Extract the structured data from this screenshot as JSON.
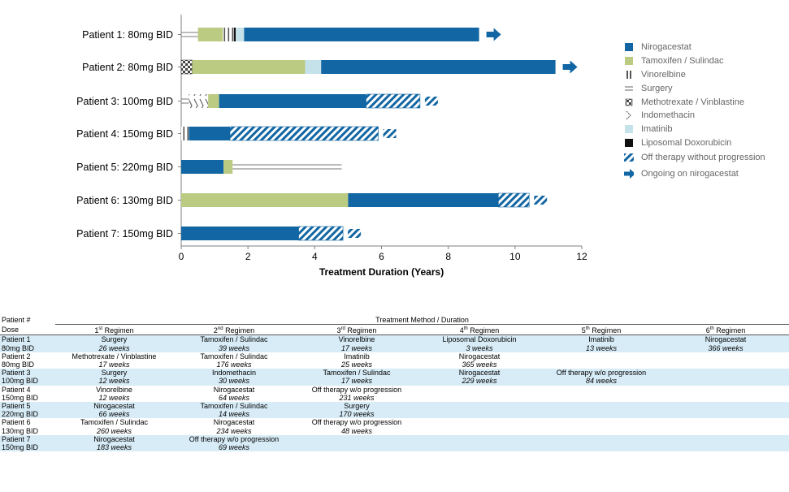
{
  "chart_data": {
    "type": "bar",
    "orientation": "horizontal-stacked-timeline",
    "xlabel": "Treatment Duration (Years)",
    "xlim": [
      0,
      12
    ],
    "xticks": [
      0,
      2,
      4,
      6,
      8,
      10,
      12
    ],
    "categories": [
      "Patient 1: 80mg BID",
      "Patient 2: 80mg BID",
      "Patient 3: 100mg BID",
      "Patient 4: 150mg BID",
      "Patient 5: 220mg BID",
      "Patient 6: 130mg BID",
      "Patient 7: 150mg BID"
    ],
    "patients": [
      {
        "label": "Patient 1: 80mg BID",
        "ongoing": true,
        "segments": [
          {
            "treatment": "Surgery",
            "weeks": 26
          },
          {
            "treatment": "Tamoxifen / Sulindac",
            "weeks": 39
          },
          {
            "treatment": "Vinorelbine",
            "weeks": 17
          },
          {
            "treatment": "Liposomal Doxorubicin",
            "weeks": 3
          },
          {
            "treatment": "Imatinib",
            "weeks": 13
          },
          {
            "treatment": "Nirogacestat",
            "weeks": 366
          }
        ]
      },
      {
        "label": "Patient 2: 80mg BID",
        "ongoing": true,
        "segments": [
          {
            "treatment": "Methotrexate / Vinblastine",
            "weeks": 17
          },
          {
            "treatment": "Tamoxifen / Sulindac",
            "weeks": 176
          },
          {
            "treatment": "Imatinib",
            "weeks": 25
          },
          {
            "treatment": "Nirogacestat",
            "weeks": 365
          }
        ]
      },
      {
        "label": "Patient 3: 100mg BID",
        "ongoing": false,
        "segments": [
          {
            "treatment": "Surgery",
            "weeks": 12
          },
          {
            "treatment": "Indomethacin",
            "weeks": 30
          },
          {
            "treatment": "Tamoxifen / Sulindac",
            "weeks": 17
          },
          {
            "treatment": "Nirogacestat",
            "weeks": 229
          },
          {
            "treatment": "Off therapy without progression",
            "weeks": 84
          }
        ]
      },
      {
        "label": "Patient 4: 150mg BID",
        "ongoing": false,
        "segments": [
          {
            "treatment": "Vinorelbine",
            "weeks": 12
          },
          {
            "treatment": "Nirogacestat",
            "weeks": 64
          },
          {
            "treatment": "Off therapy without progression",
            "weeks": 231
          }
        ]
      },
      {
        "label": "Patient 5: 220mg BID",
        "ongoing": false,
        "segments": [
          {
            "treatment": "Nirogacestat",
            "weeks": 66
          },
          {
            "treatment": "Tamoxifen / Sulindac",
            "weeks": 14
          },
          {
            "treatment": "Surgery",
            "weeks": 170
          }
        ]
      },
      {
        "label": "Patient 6: 130mg BID",
        "ongoing": false,
        "segments": [
          {
            "treatment": "Tamoxifen / Sulindac",
            "weeks": 260
          },
          {
            "treatment": "Nirogacestat",
            "weeks": 234
          },
          {
            "treatment": "Off therapy without progression",
            "weeks": 48
          }
        ]
      },
      {
        "label": "Patient 7: 150mg BID",
        "ongoing": false,
        "segments": [
          {
            "treatment": "Nirogacestat",
            "weeks": 183
          },
          {
            "treatment": "Off therapy without progression",
            "weeks": 69
          }
        ]
      }
    ],
    "legend_position": "right",
    "grid": false
  },
  "colors": {
    "Nirogacestat": "#1166a3",
    "Tamoxifen / Sulindac": "#bccb82",
    "Imatinib": "#c5e2ea",
    "Liposomal Doxorubicin": "#111111",
    "Vinorelbine": "#555555",
    "Surgery": "#777777",
    "Methotrexate / Vinblastine": "#444444",
    "Indomethacin": "#666666",
    "Off therapy without progression": "#1166a3",
    "axis": "#808080",
    "row_shade": "#d7ecf7"
  },
  "legend": [
    {
      "label": "Nirogacestat",
      "icon": "solid-blue-square"
    },
    {
      "label": "Tamoxifen / Sulindac",
      "icon": "solid-green-square"
    },
    {
      "label": "Vinorelbine",
      "icon": "double-vertical-bars"
    },
    {
      "label": "Surgery",
      "icon": "double-horizontal-lines"
    },
    {
      "label": "Methotrexate / Vinblastine",
      "icon": "checker-pattern"
    },
    {
      "label": "Indomethacin",
      "icon": "chevron-pattern"
    },
    {
      "label": "Imatinib",
      "icon": "light-blue-square"
    },
    {
      "label": "Liposomal Doxorubicin",
      "icon": "solid-black-square"
    },
    {
      "label": "Off therapy without progression",
      "icon": "hatched-stripes"
    },
    {
      "label": "Ongoing on nirogacestat",
      "icon": "blue-arrow"
    }
  ],
  "table": {
    "col_patient_header": "Patient #",
    "col_dose_header": "Dose",
    "title": "Treatment Method / Duration",
    "regimen_headers": [
      {
        "num": "1",
        "sup": "st",
        "rest": " Regimen"
      },
      {
        "num": "2",
        "sup": "nd",
        "rest": " Regimen"
      },
      {
        "num": "3",
        "sup": "rd",
        "rest": " Regimen"
      },
      {
        "num": "4",
        "sup": "th",
        "rest": " Regimen"
      },
      {
        "num": "5",
        "sup": "th",
        "rest": " Regimen"
      },
      {
        "num": "6",
        "sup": "th",
        "rest": " Regimen"
      }
    ],
    "rows": [
      {
        "patient": "Patient 1",
        "dose": "80mg BID",
        "shaded": true,
        "regimens": [
          {
            "name": "Surgery",
            "duration": "26 weeks"
          },
          {
            "name": "Tamoxifen / Sulindac",
            "duration": "39 weeks"
          },
          {
            "name": "Vinorelbine",
            "duration": "17 weeks"
          },
          {
            "name": "Liposomal Doxorubicin",
            "duration": "3 weeks"
          },
          {
            "name": "Imatinib",
            "duration": "13 weeks"
          },
          {
            "name": "Nirogacestat",
            "duration": "366 weeks"
          }
        ]
      },
      {
        "patient": "Patient 2",
        "dose": "80mg BID",
        "shaded": false,
        "regimens": [
          {
            "name": "Methotrexate / Vinblastine",
            "duration": "17 weeks"
          },
          {
            "name": "Tamoxifen / Sulindac",
            "duration": "176 weeks"
          },
          {
            "name": "Imatinib",
            "duration": "25 weeks"
          },
          {
            "name": "Nirogacestat",
            "duration": "365 weeks"
          },
          {
            "name": "",
            "duration": ""
          },
          {
            "name": "",
            "duration": ""
          }
        ]
      },
      {
        "patient": "Patient 3",
        "dose": "100mg BID",
        "shaded": true,
        "regimens": [
          {
            "name": "Surgery",
            "duration": "12 weeks"
          },
          {
            "name": "Indomethacin",
            "duration": "30 weeks"
          },
          {
            "name": "Tamoxifen / Sulindac",
            "duration": "17 weeks"
          },
          {
            "name": "Nirogacestat",
            "duration": "229 weeks"
          },
          {
            "name": "Off therapy w/o progression",
            "duration": "84 weeks"
          },
          {
            "name": "",
            "duration": ""
          }
        ]
      },
      {
        "patient": "Patient 4",
        "dose": "150mg BID",
        "shaded": false,
        "regimens": [
          {
            "name": "Vinorelbine",
            "duration": "12 weeks"
          },
          {
            "name": "Nirogacestat",
            "duration": "64 weeks"
          },
          {
            "name": "Off therapy w/o progression",
            "duration": "231 weeks"
          },
          {
            "name": "",
            "duration": ""
          },
          {
            "name": "",
            "duration": ""
          },
          {
            "name": "",
            "duration": ""
          }
        ]
      },
      {
        "patient": "Patient 5",
        "dose": "220mg BID",
        "shaded": true,
        "regimens": [
          {
            "name": "Nirogacestat",
            "duration": "66 weeks"
          },
          {
            "name": "Tamoxifen / Sulindac",
            "duration": "14 weeks"
          },
          {
            "name": "Surgery",
            "duration": "170 weeks"
          },
          {
            "name": "",
            "duration": ""
          },
          {
            "name": "",
            "duration": ""
          },
          {
            "name": "",
            "duration": ""
          }
        ]
      },
      {
        "patient": "Patient 6",
        "dose": "130mg BID",
        "shaded": false,
        "regimens": [
          {
            "name": "Tamoxifen / Sulindac",
            "duration": "260 weeks"
          },
          {
            "name": "Nirogacestat",
            "duration": "234 weeks"
          },
          {
            "name": "Off therapy w/o progression",
            "duration": "48 weeks"
          },
          {
            "name": "",
            "duration": ""
          },
          {
            "name": "",
            "duration": ""
          },
          {
            "name": "",
            "duration": ""
          }
        ]
      },
      {
        "patient": "Patient 7",
        "dose": "150mg BID",
        "shaded": true,
        "regimens": [
          {
            "name": "Nirogacestat",
            "duration": "183 weeks"
          },
          {
            "name": "Off therapy w/o progression",
            "duration": "69 weeks"
          },
          {
            "name": "",
            "duration": ""
          },
          {
            "name": "",
            "duration": ""
          },
          {
            "name": "",
            "duration": ""
          },
          {
            "name": "",
            "duration": ""
          }
        ]
      }
    ]
  }
}
